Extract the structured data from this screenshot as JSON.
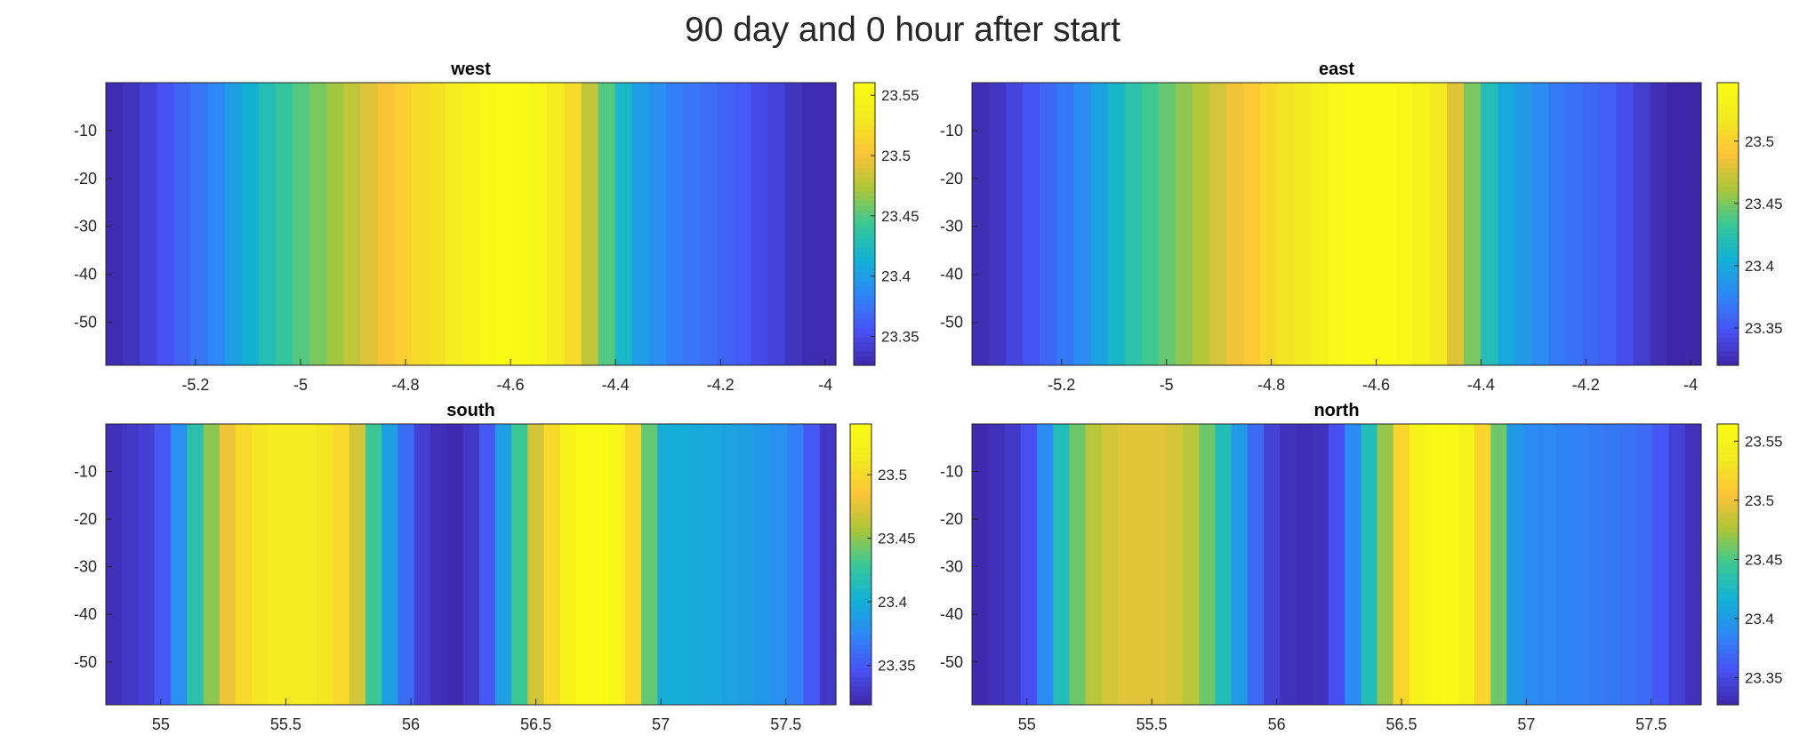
{
  "chart_data": {
    "type": "heatmap",
    "title": "90 day and 0 hour after start",
    "colormap": "parula",
    "panels": [
      {
        "title": "west",
        "xlim": [
          -5.371,
          -3.98
        ],
        "ylim": [
          -59,
          0
        ],
        "xticks": [
          -5.2,
          -5,
          -4.8,
          -4.6,
          -4.4,
          -4.2,
          -4
        ],
        "xtick_labels": [
          "-5.2",
          "-5",
          "-4.8",
          "-4.6",
          "-4.4",
          "-4.2",
          "-4"
        ],
        "yticks": [
          -10,
          -20,
          -30,
          -40,
          -50
        ],
        "ytick_labels": [
          "-10",
          "-20",
          "-30",
          "-40",
          "-50"
        ],
        "clim": [
          23.326,
          23.5605
        ],
        "cticks": [
          23.35,
          23.4,
          23.45,
          23.5,
          23.55
        ],
        "ctick_labels": [
          "23.35",
          "23.4",
          "23.45",
          "23.5",
          "23.55"
        ],
        "column_values": [
          23.33,
          23.335,
          23.345,
          23.355,
          23.365,
          23.375,
          23.385,
          23.4,
          23.415,
          23.43,
          23.44,
          23.45,
          23.46,
          23.47,
          23.48,
          23.49,
          23.5,
          23.51,
          23.52,
          23.525,
          23.535,
          23.545,
          23.555,
          23.56,
          23.558,
          23.55,
          23.535,
          23.52,
          23.48,
          23.45,
          23.42,
          23.4,
          23.39,
          23.38,
          23.375,
          23.37,
          23.365,
          23.36,
          23.35,
          23.345,
          23.335,
          23.33,
          23.33
        ]
      },
      {
        "title": "east",
        "xlim": [
          -5.371,
          -3.98
        ],
        "ylim": [
          -59,
          0
        ],
        "xticks": [
          -5.2,
          -5,
          -4.8,
          -4.6,
          -4.4,
          -4.2,
          -4
        ],
        "xtick_labels": [
          "-5.2",
          "-5",
          "-4.8",
          "-4.6",
          "-4.4",
          "-4.2",
          "-4"
        ],
        "yticks": [
          -10,
          -20,
          -30,
          -40,
          -50
        ],
        "ytick_labels": [
          "-10",
          "-20",
          "-30",
          "-40",
          "-50"
        ],
        "clim": [
          23.32,
          23.547
        ],
        "cticks": [
          23.35,
          23.4,
          23.45,
          23.5
        ],
        "ctick_labels": [
          "23.35",
          "23.4",
          "23.45",
          "23.5"
        ],
        "column_values": [
          23.325,
          23.33,
          23.34,
          23.35,
          23.36,
          23.37,
          23.38,
          23.395,
          23.41,
          23.425,
          23.435,
          23.445,
          23.455,
          23.465,
          23.475,
          23.485,
          23.495,
          23.505,
          23.515,
          23.52,
          23.53,
          23.54,
          23.545,
          23.547,
          23.545,
          23.54,
          23.53,
          23.52,
          23.48,
          23.45,
          23.42,
          23.4,
          23.39,
          23.38,
          23.37,
          23.365,
          23.36,
          23.355,
          23.345,
          23.335,
          23.325,
          23.32,
          23.32
        ]
      },
      {
        "title": "south",
        "xlim": [
          54.78,
          57.7
        ],
        "ylim": [
          -59,
          0
        ],
        "xticks": [
          55,
          55.5,
          56,
          56.5,
          57,
          57.5
        ],
        "xtick_labels": [
          "55",
          "55.5",
          "56",
          "56.5",
          "57",
          "57.5"
        ],
        "yticks": [
          -10,
          -20,
          -30,
          -40,
          -50
        ],
        "ytick_labels": [
          "-10",
          "-20",
          "-30",
          "-40",
          "-50"
        ],
        "clim": [
          23.319,
          23.54
        ],
        "cticks": [
          23.35,
          23.4,
          23.45,
          23.5
        ],
        "ctick_labels": [
          "23.35",
          "23.4",
          "23.45",
          "23.5"
        ],
        "column_values": [
          23.325,
          23.33,
          23.335,
          23.35,
          23.38,
          23.42,
          23.45,
          23.48,
          23.5,
          23.51,
          23.515,
          23.515,
          23.515,
          23.51,
          23.5,
          23.47,
          23.43,
          23.39,
          23.36,
          23.335,
          23.325,
          23.322,
          23.33,
          23.35,
          23.39,
          23.43,
          23.47,
          23.5,
          23.525,
          23.54,
          23.54,
          23.53,
          23.5,
          23.44,
          23.4,
          23.4,
          23.398,
          23.395,
          23.392,
          23.39,
          23.385,
          23.38,
          23.37,
          23.35,
          23.33
        ]
      },
      {
        "title": "north",
        "xlim": [
          54.78,
          57.7
        ],
        "ylim": [
          -59,
          0
        ],
        "xticks": [
          55,
          55.5,
          56,
          56.5,
          57,
          57.5
        ],
        "xtick_labels": [
          "55",
          "55.5",
          "56",
          "56.5",
          "57",
          "57.5"
        ],
        "yticks": [
          -10,
          -20,
          -30,
          -40,
          -50
        ],
        "ytick_labels": [
          "-10",
          "-20",
          "-30",
          "-40",
          "-50"
        ],
        "clim": [
          23.327,
          23.5646
        ],
        "cticks": [
          23.35,
          23.4,
          23.45,
          23.5,
          23.55
        ],
        "ctick_labels": [
          "23.35",
          "23.4",
          "23.45",
          "23.5",
          "23.55"
        ],
        "column_values": [
          23.33,
          23.333,
          23.34,
          23.355,
          23.39,
          23.43,
          23.46,
          23.48,
          23.49,
          23.495,
          23.495,
          23.495,
          23.49,
          23.48,
          23.46,
          23.43,
          23.4,
          23.37,
          23.345,
          23.335,
          23.332,
          23.335,
          23.355,
          23.39,
          23.43,
          23.47,
          23.52,
          23.55,
          23.56,
          23.562,
          23.55,
          23.52,
          23.46,
          23.4,
          23.39,
          23.388,
          23.385,
          23.383,
          23.38,
          23.378,
          23.375,
          23.37,
          23.36,
          23.345,
          23.335
        ]
      }
    ]
  }
}
